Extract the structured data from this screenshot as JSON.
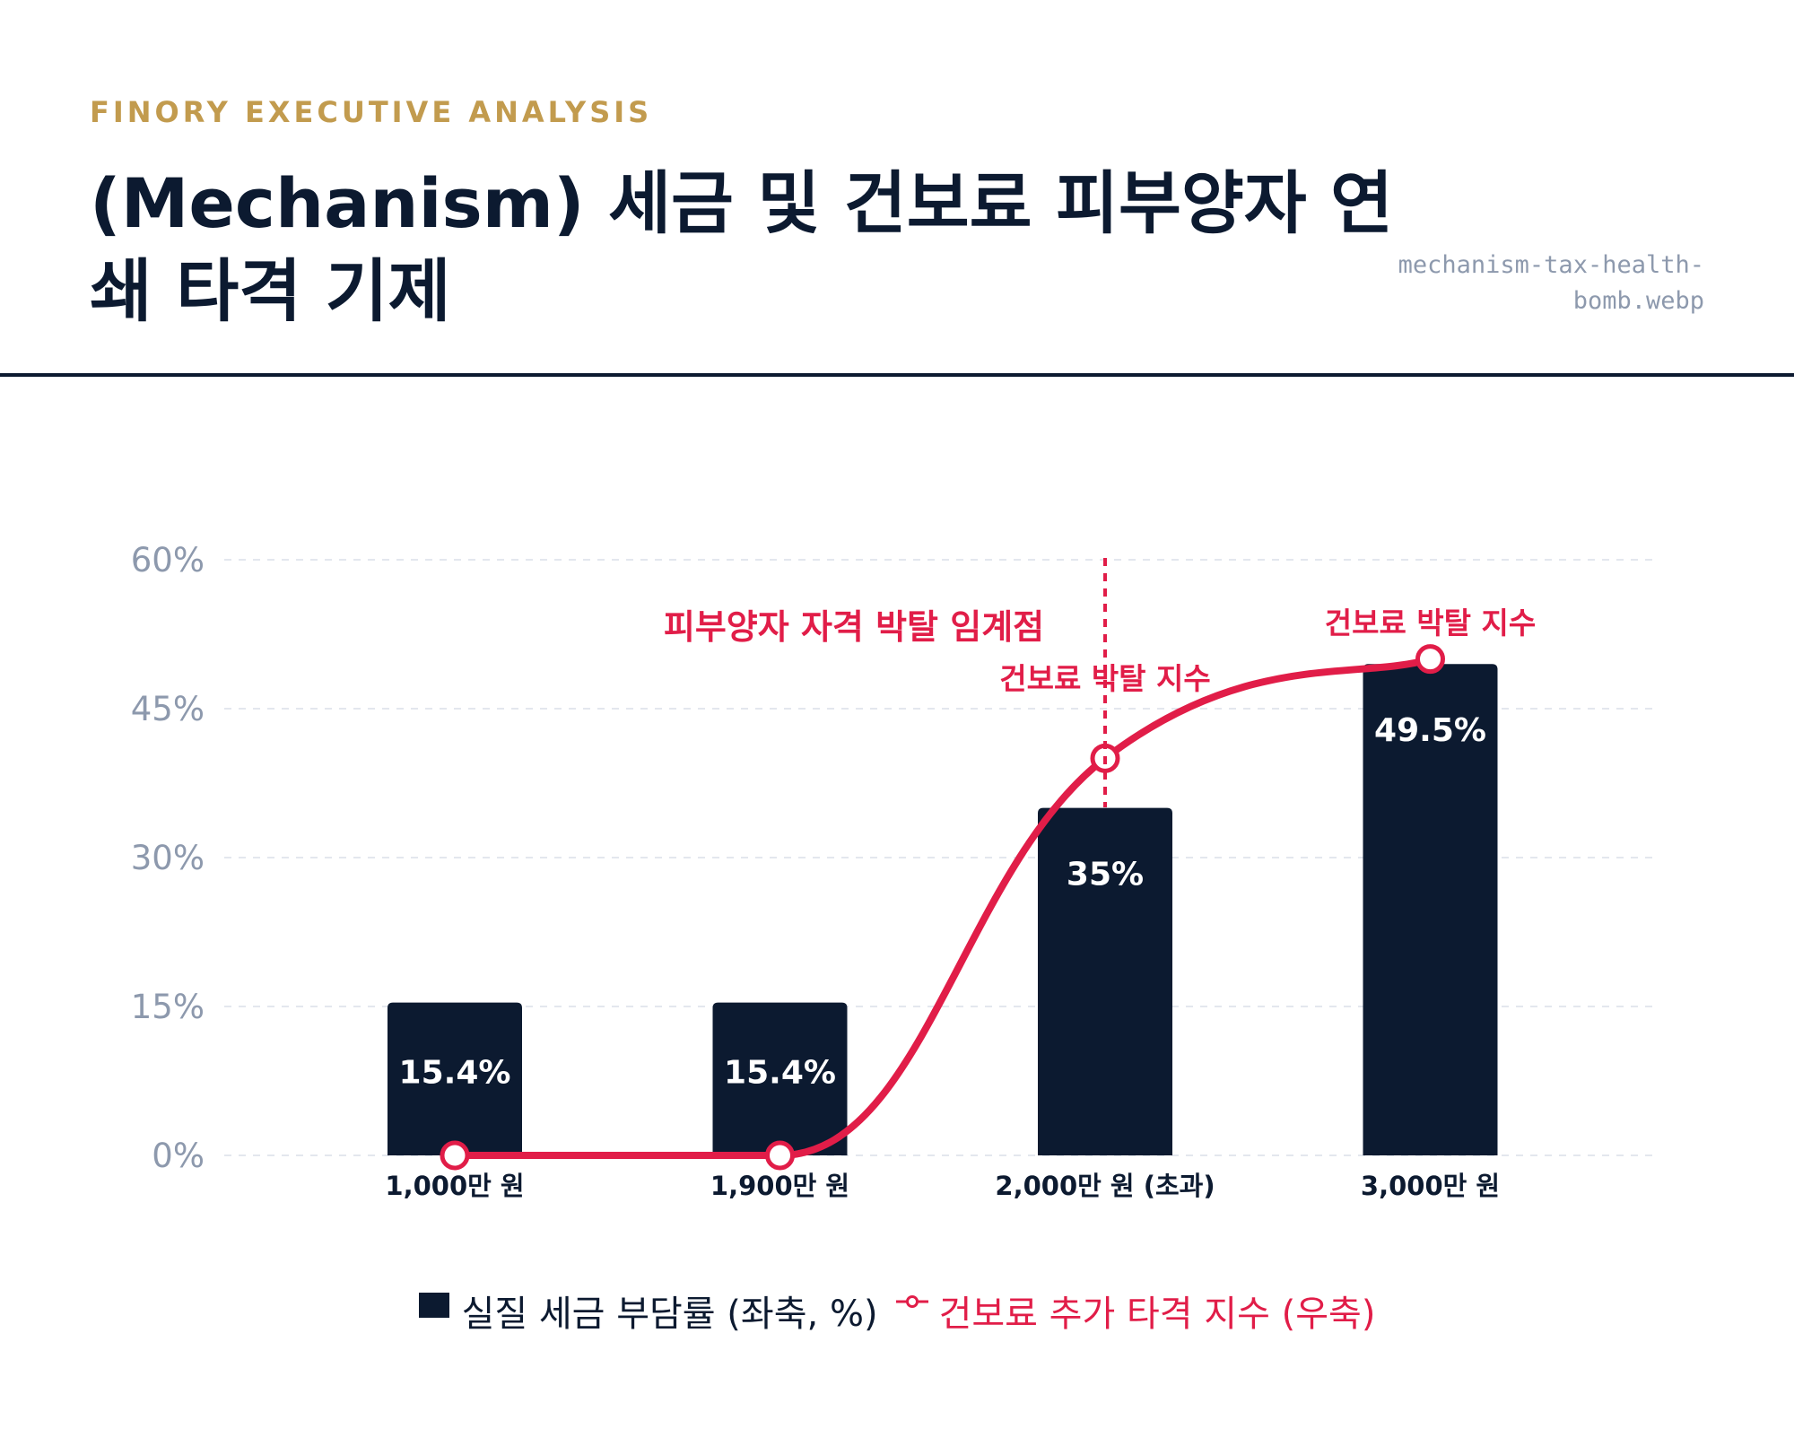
{
  "header": {
    "brand": "FINORY EXECUTIVE ANALYSIS",
    "title": "(Mechanism) 세금 및 건보료 피부양자 연쇄 타격 기제",
    "filename": "mechanism-tax-health-bomb.webp"
  },
  "colors": {
    "bar": "#0c1a30",
    "line": "#e11d48",
    "axis_text": "#8d99ad",
    "grid": "#e3e7ee",
    "brand": "#c29b4e"
  },
  "chart_data": {
    "type": "bar",
    "categories": [
      "1,000만 원",
      "1,900만 원",
      "2,000만 원 (초과)",
      "3,000만 원"
    ],
    "series": [
      {
        "name": "실질 세금 부담률 (좌축, %)",
        "type": "bar",
        "axis": "left",
        "values": [
          15.4,
          15.4,
          35,
          49.5
        ],
        "labels": [
          "15.4%",
          "15.4%",
          "35%",
          "49.5%"
        ]
      },
      {
        "name": "건보료 추가 타격 지수 (우축)",
        "type": "line",
        "axis": "right",
        "smooth": true,
        "values": [
          0,
          0,
          40,
          50
        ]
      }
    ],
    "y_axis": {
      "ylim": [
        0,
        60
      ],
      "ticks": [
        0,
        15,
        30,
        45,
        60
      ],
      "tick_labels": [
        "0%",
        "15%",
        "30%",
        "45%",
        "60%"
      ]
    },
    "grid": true,
    "legend_position": "bottom-center",
    "annotations": [
      {
        "text": "피부양자 자격 박탈 임계점",
        "category_index": 2,
        "type": "vertical-dashed-line"
      },
      {
        "text": "건보료 박탈 지수",
        "category_index": 2
      },
      {
        "text": "건보료 박탈 지수",
        "category_index": 3
      }
    ]
  }
}
